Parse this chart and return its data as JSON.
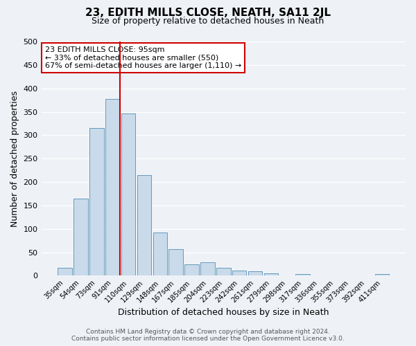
{
  "title": "23, EDITH MILLS CLOSE, NEATH, SA11 2JL",
  "subtitle": "Size of property relative to detached houses in Neath",
  "xlabel": "Distribution of detached houses by size in Neath",
  "ylabel": "Number of detached properties",
  "bin_labels": [
    "35sqm",
    "54sqm",
    "73sqm",
    "91sqm",
    "110sqm",
    "129sqm",
    "148sqm",
    "167sqm",
    "185sqm",
    "204sqm",
    "223sqm",
    "242sqm",
    "261sqm",
    "279sqm",
    "298sqm",
    "317sqm",
    "336sqm",
    "355sqm",
    "373sqm",
    "392sqm",
    "411sqm"
  ],
  "bar_values": [
    17,
    165,
    315,
    378,
    347,
    215,
    93,
    57,
    25,
    29,
    17,
    11,
    9,
    5,
    0,
    4,
    0,
    0,
    0,
    0,
    4
  ],
  "bar_color": "#c9daea",
  "bar_edge_color": "#6699bb",
  "vline_color": "#cc0000",
  "annotation_text": "23 EDITH MILLS CLOSE: 95sqm\n← 33% of detached houses are smaller (550)\n67% of semi-detached houses are larger (1,110) →",
  "annotation_box_facecolor": "#ffffff",
  "annotation_box_edgecolor": "#cc0000",
  "ylim": [
    0,
    500
  ],
  "yticks": [
    0,
    50,
    100,
    150,
    200,
    250,
    300,
    350,
    400,
    450,
    500
  ],
  "footer_line1": "Contains HM Land Registry data © Crown copyright and database right 2024.",
  "footer_line2": "Contains public sector information licensed under the Open Government Licence v3.0.",
  "background_color": "#eef2f7",
  "grid_color": "#ffffff",
  "title_fontsize": 11,
  "subtitle_fontsize": 9
}
